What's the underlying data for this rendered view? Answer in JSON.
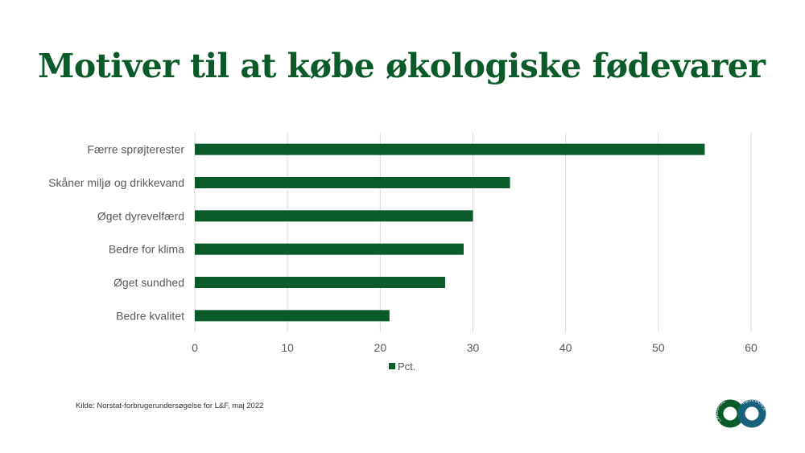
{
  "title": "Motiver til at købe økologiske fødevarer",
  "source": "Kilde: Norstat-forbrugerundersøgelse for L&F, maj 2022",
  "logo": {
    "text_left": "LANDBRUG",
    "text_right": "FØDEVARER"
  },
  "colors": {
    "title": "#0b5a2a",
    "bar": "#0b5a2a",
    "logo_left": "#0b5a2a",
    "logo_right": "#17627a"
  },
  "chart_data": {
    "type": "bar",
    "orientation": "horizontal",
    "categories": [
      "Færre sprøjterester",
      "Skåner miljø og drikkevand",
      "Øget dyrevelfærd",
      "Bedre for klima",
      "Øget sundhed",
      "Bedre kvalitet"
    ],
    "series": [
      {
        "name": "Pct.",
        "values": [
          55,
          34,
          30,
          29,
          27,
          21
        ]
      }
    ],
    "xlim": [
      0,
      60
    ],
    "xticks": [
      0,
      10,
      20,
      30,
      40,
      50,
      60
    ],
    "grid": true,
    "legend": "bottom"
  }
}
